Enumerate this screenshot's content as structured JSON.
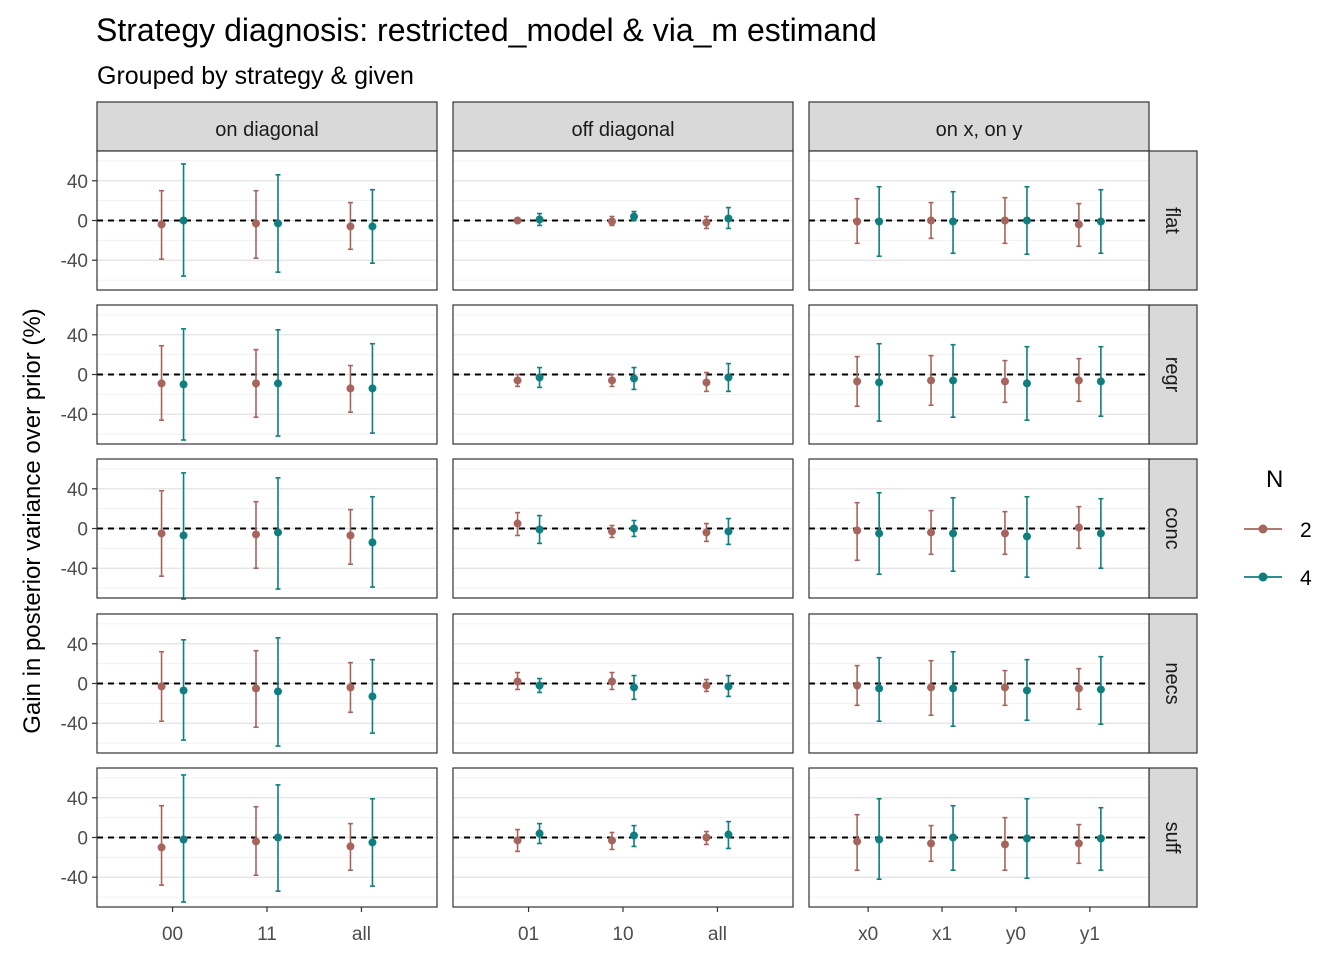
{
  "chart_data": {
    "type": "scatter",
    "title": "Strategy diagnosis: restricted_model & via_m estimand",
    "subtitle": "Grouped by strategy & given",
    "ylabel": "Gain in posterior variance over prior (%)",
    "ylim": [
      -70,
      70
    ],
    "yticks": [
      -40,
      0,
      40
    ],
    "yticklabels": [
      "-40",
      "0",
      "40"
    ],
    "reference_line_y": 0,
    "legend": {
      "title": "N",
      "position": "right",
      "entries": [
        {
          "label": "2",
          "color": "#A6645C"
        },
        {
          "label": "4",
          "color": "#0F7E7E"
        }
      ]
    },
    "col_facets": [
      {
        "label": "on diagonal",
        "categories": [
          "00",
          "11",
          "all"
        ]
      },
      {
        "label": "off diagonal",
        "categories": [
          "01",
          "10",
          "all"
        ]
      },
      {
        "label": "on x, on y",
        "categories": [
          "x0",
          "x1",
          "y0",
          "y1"
        ]
      }
    ],
    "row_facets": [
      "flat",
      "regr",
      "conc",
      "necs",
      "suff"
    ],
    "panels": [
      [
        [
          [
            [
              -4,
              -39,
              30
            ],
            [
              0,
              -56,
              57
            ]
          ],
          [
            [
              -3,
              -38,
              30
            ],
            [
              -3,
              -52,
              46
            ]
          ],
          [
            [
              -6,
              -29,
              18
            ],
            [
              -6,
              -43,
              31
            ]
          ]
        ],
        [
          [
            [
              0,
              -1,
              1
            ],
            [
              1,
              -5,
              7
            ]
          ],
          [
            [
              -1,
              -5,
              4
            ],
            [
              4,
              0,
              9
            ]
          ],
          [
            [
              -2,
              -8,
              4
            ],
            [
              2,
              -8,
              13
            ]
          ]
        ],
        [
          [
            [
              -1,
              -23,
              22
            ],
            [
              -1,
              -36,
              34
            ]
          ],
          [
            [
              0,
              -18,
              18
            ],
            [
              -1,
              -33,
              29
            ]
          ],
          [
            [
              0,
              -23,
              23
            ],
            [
              0,
              -34,
              34
            ]
          ],
          [
            [
              -4,
              -26,
              17
            ],
            [
              -1,
              -33,
              31
            ]
          ]
        ]
      ],
      [
        [
          [
            [
              -9,
              -46,
              29
            ],
            [
              -10,
              -66,
              46
            ]
          ],
          [
            [
              -9,
              -43,
              25
            ],
            [
              -9,
              -62,
              45
            ]
          ],
          [
            [
              -14,
              -38,
              9
            ],
            [
              -14,
              -59,
              31
            ]
          ]
        ],
        [
          [
            [
              -6,
              -12,
              0
            ],
            [
              -3,
              -13,
              7
            ]
          ],
          [
            [
              -6,
              -12,
              0
            ],
            [
              -4,
              -15,
              7
            ]
          ],
          [
            [
              -8,
              -17,
              2
            ],
            [
              -3,
              -17,
              11
            ]
          ]
        ],
        [
          [
            [
              -7,
              -32,
              18
            ],
            [
              -8,
              -47,
              31
            ]
          ],
          [
            [
              -6,
              -31,
              19
            ],
            [
              -6,
              -43,
              30
            ]
          ],
          [
            [
              -7,
              -28,
              14
            ],
            [
              -9,
              -46,
              28
            ]
          ],
          [
            [
              -6,
              -27,
              16
            ],
            [
              -7,
              -42,
              28
            ]
          ]
        ]
      ],
      [
        [
          [
            [
              -5,
              -48,
              38
            ],
            [
              -7,
              -71,
              56
            ]
          ],
          [
            [
              -6,
              -40,
              27
            ],
            [
              -4,
              -61,
              51
            ]
          ],
          [
            [
              -7,
              -36,
              19
            ],
            [
              -14,
              -59,
              32
            ]
          ]
        ],
        [
          [
            [
              5,
              -7,
              16
            ],
            [
              -1,
              -15,
              13
            ]
          ],
          [
            [
              -3,
              -9,
              3
            ],
            [
              0,
              -8,
              8
            ]
          ],
          [
            [
              -4,
              -13,
              5
            ],
            [
              -3,
              -16,
              10
            ]
          ]
        ],
        [
          [
            [
              -2,
              -32,
              26
            ],
            [
              -5,
              -46,
              36
            ]
          ],
          [
            [
              -4,
              -26,
              18
            ],
            [
              -5,
              -43,
              31
            ]
          ],
          [
            [
              -5,
              -26,
              17
            ],
            [
              -8,
              -49,
              32
            ]
          ],
          [
            [
              1,
              -20,
              22
            ],
            [
              -5,
              -40,
              30
            ]
          ]
        ]
      ],
      [
        [
          [
            [
              -3,
              -38,
              32
            ],
            [
              -7,
              -57,
              44
            ]
          ],
          [
            [
              -5,
              -44,
              33
            ],
            [
              -8,
              -63,
              46
            ]
          ],
          [
            [
              -4,
              -29,
              21
            ],
            [
              -13,
              -50,
              24
            ]
          ]
        ],
        [
          [
            [
              2,
              -6,
              11
            ],
            [
              -2,
              -9,
              5
            ]
          ],
          [
            [
              2,
              -6,
              11
            ],
            [
              -4,
              -16,
              8
            ]
          ],
          [
            [
              -2,
              -8,
              4
            ],
            [
              -3,
              -13,
              8
            ]
          ]
        ],
        [
          [
            [
              -2,
              -22,
              18
            ],
            [
              -5,
              -38,
              26
            ]
          ],
          [
            [
              -4,
              -32,
              23
            ],
            [
              -5,
              -43,
              32
            ]
          ],
          [
            [
              -4,
              -22,
              13
            ],
            [
              -7,
              -37,
              24
            ]
          ],
          [
            [
              -5,
              -26,
              15
            ],
            [
              -6,
              -41,
              27
            ]
          ]
        ]
      ],
      [
        [
          [
            [
              -10,
              -48,
              32
            ],
            [
              -2,
              -65,
              63
            ]
          ],
          [
            [
              -4,
              -38,
              31
            ],
            [
              0,
              -54,
              53
            ]
          ],
          [
            [
              -9,
              -33,
              14
            ],
            [
              -5,
              -49,
              39
            ]
          ]
        ],
        [
          [
            [
              -3,
              -14,
              8
            ],
            [
              4,
              -6,
              14
            ]
          ],
          [
            [
              -3,
              -12,
              5
            ],
            [
              2,
              -9,
              12
            ]
          ],
          [
            [
              0,
              -7,
              6
            ],
            [
              3,
              -11,
              16
            ]
          ]
        ],
        [
          [
            [
              -4,
              -33,
              23
            ],
            [
              -2,
              -42,
              39
            ]
          ],
          [
            [
              -6,
              -24,
              12
            ],
            [
              0,
              -33,
              32
            ]
          ],
          [
            [
              -7,
              -33,
              20
            ],
            [
              -1,
              -41,
              39
            ]
          ],
          [
            [
              -6,
              -26,
              13
            ],
            [
              -1,
              -33,
              30
            ]
          ]
        ]
      ]
    ]
  }
}
